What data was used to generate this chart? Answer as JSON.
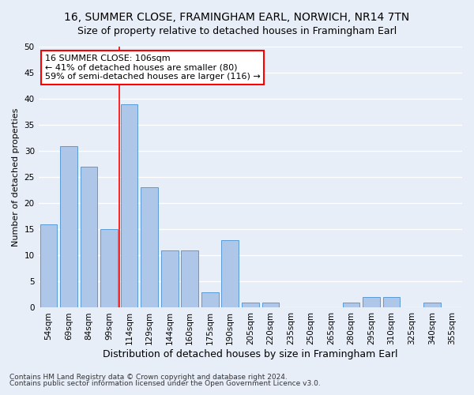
{
  "title": "16, SUMMER CLOSE, FRAMINGHAM EARL, NORWICH, NR14 7TN",
  "subtitle": "Size of property relative to detached houses in Framingham Earl",
  "xlabel": "Distribution of detached houses by size in Framingham Earl",
  "ylabel": "Number of detached properties",
  "footnote1": "Contains HM Land Registry data © Crown copyright and database right 2024.",
  "footnote2": "Contains public sector information licensed under the Open Government Licence v3.0.",
  "categories": [
    "54sqm",
    "69sqm",
    "84sqm",
    "99sqm",
    "114sqm",
    "129sqm",
    "144sqm",
    "160sqm",
    "175sqm",
    "190sqm",
    "205sqm",
    "220sqm",
    "235sqm",
    "250sqm",
    "265sqm",
    "280sqm",
    "295sqm",
    "310sqm",
    "325sqm",
    "340sqm",
    "355sqm"
  ],
  "values": [
    16,
    31,
    27,
    15,
    39,
    23,
    11,
    11,
    3,
    13,
    1,
    1,
    0,
    0,
    0,
    1,
    2,
    2,
    0,
    1,
    0
  ],
  "bar_color": "#aec6e8",
  "bar_edge_color": "#5b9bd5",
  "vline_x": 3.5,
  "vline_color": "red",
  "annotation_text": "16 SUMMER CLOSE: 106sqm\n← 41% of detached houses are smaller (80)\n59% of semi-detached houses are larger (116) →",
  "annotation_box_color": "white",
  "annotation_box_edge": "red",
  "ylim": [
    0,
    50
  ],
  "yticks": [
    0,
    5,
    10,
    15,
    20,
    25,
    30,
    35,
    40,
    45,
    50
  ],
  "background_color": "#e8eef8",
  "grid_color": "#ffffff",
  "title_fontsize": 10,
  "subtitle_fontsize": 9,
  "xlabel_fontsize": 9,
  "ylabel_fontsize": 8,
  "tick_fontsize": 7.5,
  "annotation_fontsize": 8,
  "footnote_fontsize": 6.5
}
